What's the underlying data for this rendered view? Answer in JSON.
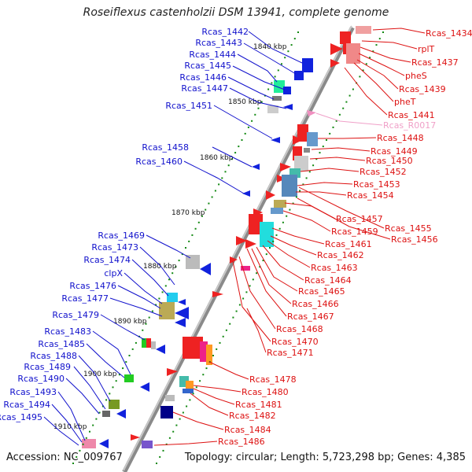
{
  "title": "Roseiflexus castenholzii DSM 13941, complete genome",
  "footer": {
    "accession": "Accession: NC_009767",
    "topology": "Topology: circular; Length: 5,723,298 bp; Genes: 4,385"
  },
  "colors": {
    "left_label": "#1111cc",
    "right_label": "#dd1111",
    "rna_label": "#f0a0c8",
    "tick": "#118811",
    "backbone": "#999999"
  },
  "kbp_ticks": [
    "1840 kbp",
    "1850 kbp",
    "1860 kbp",
    "1870 kbp",
    "1880 kbp",
    "1890 kbp",
    "1900 kbp",
    "1910 kbp"
  ],
  "left_labels": [
    "Rcas_1442",
    "Rcas_1443",
    "Rcas_1444",
    "Rcas_1445",
    "Rcas_1446",
    "Rcas_1447",
    "Rcas_1451",
    "Rcas_1458",
    "Rcas_1460",
    "Rcas_1469",
    "Rcas_1473",
    "Rcas_1474",
    "clpX",
    "Rcas_1476",
    "Rcas_1477",
    "Rcas_1479",
    "Rcas_1483",
    "Rcas_1485",
    "Rcas_1488",
    "Rcas_1489",
    "Rcas_1490",
    "Rcas_1493",
    "Rcas_1494",
    "Rcas_1495"
  ],
  "right_labels": [
    "Rcas_1434",
    "rplT",
    "Rcas_1437",
    "pheS",
    "Rcas_1439",
    "pheT",
    "Rcas_1441",
    "Rcas_R0017",
    "Rcas_1448",
    "Rcas_1449",
    "Rcas_1450",
    "Rcas_1452",
    "Rcas_1453",
    "Rcas_1454",
    "Rcas_1457",
    "Rcas_1455",
    "Rcas_1459",
    "Rcas_1456",
    "Rcas_1461",
    "Rcas_1462",
    "Rcas_1463",
    "Rcas_1464",
    "Rcas_1465",
    "Rcas_1466",
    "Rcas_1467",
    "Rcas_1468",
    "Rcas_1470",
    "Rcas_1471",
    "Rcas_1478",
    "Rcas_1480",
    "Rcas_1481",
    "Rcas_1482",
    "Rcas_1484",
    "Rcas_1486"
  ]
}
